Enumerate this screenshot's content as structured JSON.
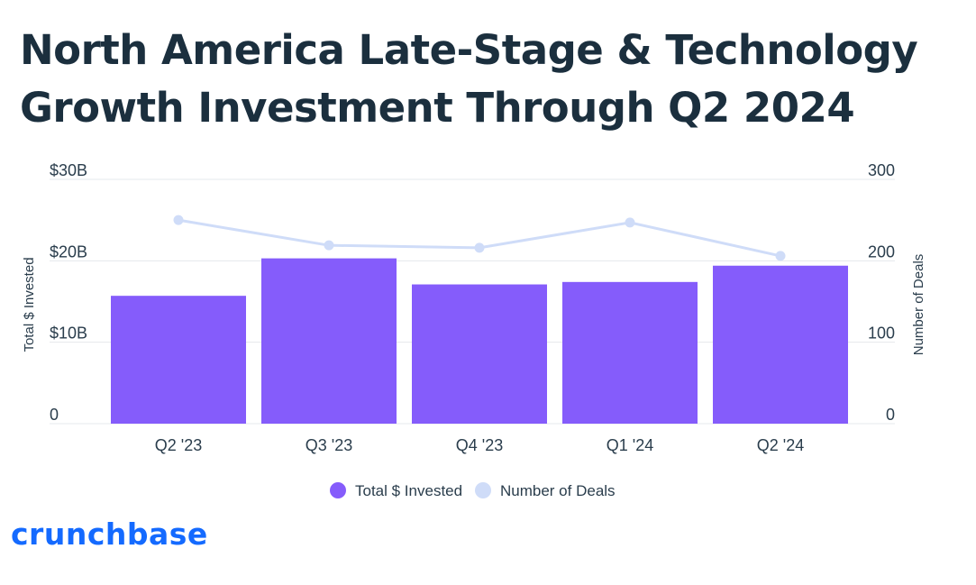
{
  "title_line1": "North America Late-Stage & Technology",
  "title_line2": "Growth Investment Through Q2 2024",
  "brand": "crunchbase",
  "colors": {
    "bars": "#855cfb",
    "line": "#cfdcf8",
    "title": "#1b2f3e",
    "brand": "#146aff",
    "grid": "#e4e8ec"
  },
  "chart_data": {
    "type": "bar",
    "title": "North America Late-Stage & Technology Growth Investment Through Q2 2024",
    "categories": [
      "Q2 '23",
      "Q3 '23",
      "Q4 '23",
      "Q1 '24",
      "Q2 '24"
    ],
    "series": [
      {
        "name": "Total $ Invested",
        "type": "bar",
        "axis": "left",
        "values": [
          15.7,
          20.3,
          17.1,
          17.4,
          19.4
        ]
      },
      {
        "name": "Number of Deals",
        "type": "line",
        "axis": "right",
        "values": [
          250,
          219,
          216,
          247,
          206
        ]
      }
    ],
    "ylabel": "Total $ Invested",
    "ylabel_right": "Number of Deals",
    "ylim": [
      0,
      30
    ],
    "ylim_right": [
      0,
      300
    ],
    "yticks": [
      "0",
      "$10B",
      "$20B",
      "$30B"
    ],
    "yticks_right": [
      "0",
      "100",
      "200",
      "300"
    ],
    "grid": true,
    "legend": "bottom-center"
  }
}
